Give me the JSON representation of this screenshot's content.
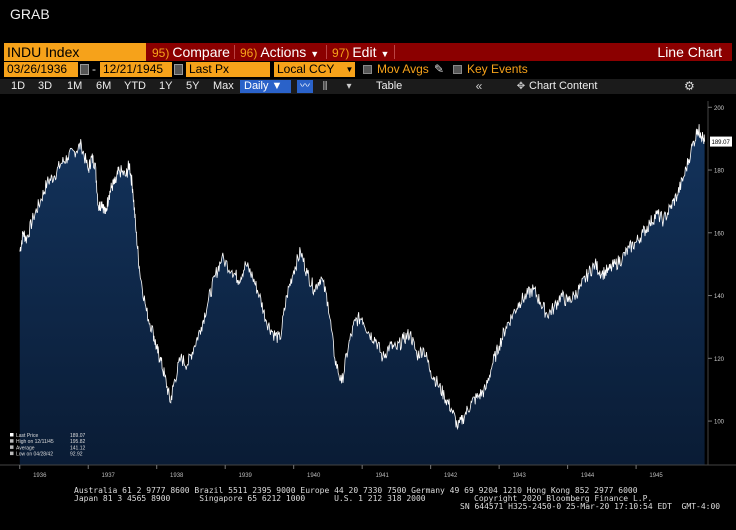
{
  "window": {
    "title": "GRAB"
  },
  "toolbar": {
    "ticker": "INDU Index",
    "compare": {
      "num": "95)",
      "label": "Compare"
    },
    "actions": {
      "num": "96)",
      "label": "Actions"
    },
    "edit": {
      "num": "97)",
      "label": "Edit"
    },
    "chart_type": "Line Chart"
  },
  "params": {
    "start_date": "03/26/1936",
    "end_date": "12/21/1945",
    "field": "Last Px",
    "currency": "Local CCY",
    "mov_avgs": "Mov Avgs",
    "key_events": "Key Events"
  },
  "periods": [
    "1D",
    "3D",
    "1M",
    "6M",
    "YTD",
    "1Y",
    "5Y",
    "Max"
  ],
  "frequency": "Daily",
  "table_label": "Table",
  "chart_content_label": "Chart Content",
  "colors": {
    "accent": "#f6a21a",
    "header_bar": "#8b0000",
    "fill": "#0d2340",
    "line": "#ffffff",
    "freq_btn": "#2a62c9"
  },
  "chart_data": {
    "type": "area",
    "title": "",
    "xlabel": "",
    "ylabel": "",
    "x_tick_labels": [
      "1936",
      "1937",
      "1938",
      "1939",
      "1940",
      "1941",
      "1942",
      "1943",
      "1944",
      "1945"
    ],
    "x_tick_positions": [
      1936.0,
      1937.0,
      1938.0,
      1939.0,
      1940.0,
      1941.0,
      1942.0,
      1943.0,
      1944.0,
      1945.0
    ],
    "y_ticks": [
      100,
      120,
      140,
      160,
      180,
      200
    ],
    "xlim": [
      1935.77,
      1946.05
    ],
    "ylim": [
      86,
      202
    ],
    "last_value_tag": "189.07",
    "legend": {
      "placement": "bottom-left",
      "items": [
        {
          "label": "Last Price",
          "value": "189.07"
        },
        {
          "label": "High on 12/11/45",
          "value": "195.82"
        },
        {
          "label": "Average",
          "value": "141.12"
        },
        {
          "label": "Low on 04/28/42",
          "value": "92.92"
        }
      ]
    },
    "series": [
      {
        "x": [
          1936.0,
          1936.05,
          1936.1,
          1936.2,
          1936.3,
          1936.4,
          1936.5,
          1936.6,
          1936.7,
          1936.8,
          1936.9,
          1937.0,
          1937.05,
          1937.1,
          1937.15,
          1937.2,
          1937.25,
          1937.3,
          1937.35,
          1937.4,
          1937.45,
          1937.55,
          1937.6,
          1937.65,
          1937.7,
          1937.75,
          1937.85,
          1937.95,
          1938.0,
          1938.05,
          1938.12,
          1938.2,
          1938.25,
          1938.35,
          1938.45,
          1938.55,
          1938.65,
          1938.75,
          1938.85,
          1938.95,
          1939.1,
          1939.2,
          1939.3,
          1939.4,
          1939.5,
          1939.6,
          1939.7,
          1939.8,
          1939.9,
          1940.0,
          1940.1,
          1940.2,
          1940.3,
          1940.4,
          1940.5,
          1940.6,
          1940.7,
          1940.8,
          1940.9,
          1941.0,
          1941.1,
          1941.2,
          1941.3,
          1941.4,
          1941.5,
          1941.6,
          1941.7,
          1941.8,
          1941.9,
          1942.0,
          1942.1,
          1942.2,
          1942.3,
          1942.4,
          1942.5,
          1942.6,
          1942.7,
          1942.8,
          1942.9,
          1943.0,
          1943.1,
          1943.2,
          1943.3,
          1943.4,
          1943.5,
          1943.6,
          1943.7,
          1943.8,
          1943.9,
          1944.0,
          1944.1,
          1944.2,
          1944.3,
          1944.4,
          1944.5,
          1944.6,
          1944.7,
          1944.8,
          1944.9,
          1945.0,
          1945.1,
          1945.2,
          1945.3,
          1945.4,
          1945.5,
          1945.6,
          1945.7,
          1945.8,
          1945.9,
          1945.94,
          1946.0
        ],
        "y": [
          154,
          160,
          158,
          165,
          170,
          176,
          178,
          182,
          184,
          186,
          188,
          180,
          184,
          182,
          168,
          170,
          166,
          172,
          175,
          176,
          180,
          178,
          182,
          174,
          160,
          148,
          135,
          128,
          123,
          120,
          114,
          106,
          112,
          120,
          118,
          124,
          130,
          138,
          146,
          152,
          148,
          145,
          150,
          146,
          140,
          132,
          128,
          126,
          140,
          148,
          154,
          147,
          142,
          146,
          138,
          120,
          112,
          124,
          132,
          133,
          128,
          126,
          120,
          124,
          123,
          126,
          128,
          121,
          123,
          116,
          112,
          108,
          104,
          98,
          102,
          106,
          108,
          110,
          118,
          124,
          130,
          134,
          138,
          140,
          142,
          138,
          134,
          136,
          140,
          138,
          140,
          143,
          147,
          150,
          147,
          148,
          150,
          152,
          155,
          157,
          160,
          163,
          166,
          164,
          168,
          172,
          178,
          186,
          193,
          192,
          189.07
        ],
        "name": ""
      }
    ]
  },
  "footer": {
    "line1": "Australia 61 2 9777 8600 Brazil 5511 2395 9000 Europe 44 20 7330 7500 Germany 49 69 9204 1210 Hong Kong 852 2977 6000",
    "line2a": "Japan 81 3 4565 8900      Singapore 65 6212 1000      U.S. 1 212 318 2000",
    "line2b": "Copyright 2020 Bloomberg Finance L.P.",
    "line3": "SN 644571 H325-2450-0 25-Mar-20 17:10:54 EDT  GMT-4:00"
  }
}
